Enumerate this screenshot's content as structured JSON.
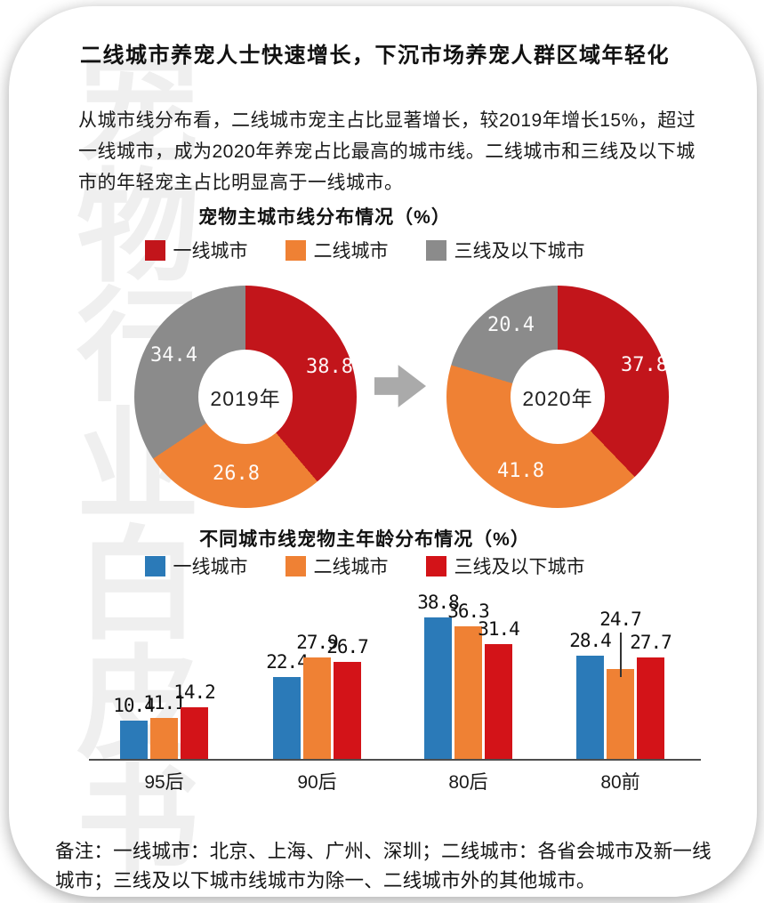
{
  "page": {
    "title": "二线城市养宠人士快速增长，下沉市场养宠人群区域年轻化",
    "paragraph": "从城市线分布看，二线城市宠主占比显著增长，较2019年增长15%，超过一线城市，成为2020年养宠占比最高的城市线。二线城市和三线及以下城市的年轻宠主占比明显高于一线城市。",
    "footnote": "备注：一线城市：北京、上海、广州、深圳；二线城市：各省会城市及新一线城市；三线及以下城市线城市为除一、二线城市外的其他城市。",
    "watermark": "宠物行业白皮书"
  },
  "colors": {
    "donut_red": "#c2151b",
    "bar_red": "#d31318",
    "orange": "#ef8134",
    "gray": "#8b8b8b",
    "blue": "#2b7ab8",
    "arrow": "#aaaaaa"
  },
  "chart_data": [
    {
      "type": "pie",
      "title": "宠物主城市线分布情况（%）",
      "legend": [
        {
          "label": "一线城市",
          "color": "#c2151b"
        },
        {
          "label": "二线城市",
          "color": "#ef8134"
        },
        {
          "label": "三线及以下城市",
          "color": "#8b8b8b"
        }
      ],
      "donuts": [
        {
          "center_label": "2019年",
          "slices": [
            {
              "label": "一线城市",
              "value": 38.8
            },
            {
              "label": "二线城市",
              "value": 26.8
            },
            {
              "label": "三线及以下城市",
              "value": 34.4
            }
          ]
        },
        {
          "center_label": "2020年",
          "slices": [
            {
              "label": "一线城市",
              "value": 37.8
            },
            {
              "label": "二线城市",
              "value": 41.8
            },
            {
              "label": "三线及以下城市",
              "value": 20.4
            }
          ]
        }
      ]
    },
    {
      "type": "bar",
      "title": "不同城市线宠物主年龄分布情况（%）",
      "legend": [
        {
          "label": "一线城市",
          "color": "#2b7ab8"
        },
        {
          "label": "二线城市",
          "color": "#ef8134"
        },
        {
          "label": "三线及以下城市",
          "color": "#d31318"
        }
      ],
      "categories": [
        "95后",
        "90后",
        "80后",
        "80前"
      ],
      "series": [
        {
          "name": "一线城市",
          "color": "#2b7ab8",
          "values": [
            10.4,
            22.4,
            38.8,
            28.4
          ]
        },
        {
          "name": "二线城市",
          "color": "#ef8134",
          "values": [
            11.1,
            27.9,
            36.3,
            24.7
          ]
        },
        {
          "name": "三线及以下城市",
          "color": "#d31318",
          "values": [
            14.2,
            26.7,
            31.4,
            27.7
          ]
        }
      ],
      "ylim": [
        0,
        45
      ],
      "grid": false,
      "legend_position": "top"
    }
  ]
}
